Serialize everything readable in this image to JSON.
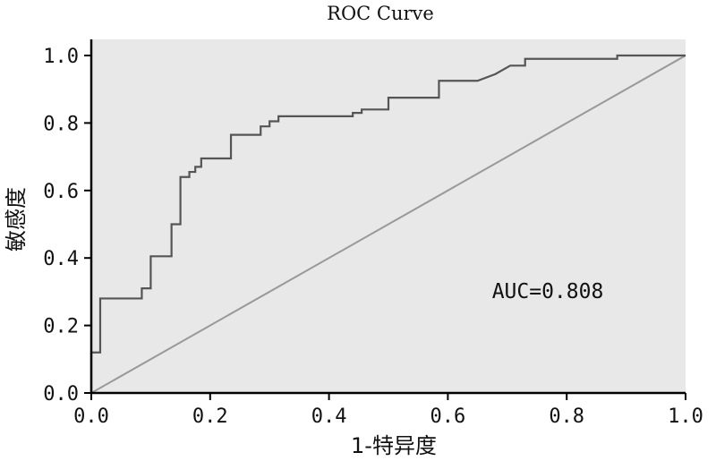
{
  "chart_data": {
    "type": "line",
    "title": "ROC Curve",
    "xlabel": "1-特异度",
    "ylabel": "敏感度",
    "xlim": [
      0,
      1
    ],
    "ylim": [
      0,
      1
    ],
    "x_ticks": [
      "0.0",
      "0.2",
      "0.4",
      "0.6",
      "0.8",
      "1.0"
    ],
    "y_ticks": [
      "0.0",
      "0.2",
      "0.4",
      "0.6",
      "0.8",
      "1.0"
    ],
    "annotation": "AUC=0.808",
    "grid": false,
    "colors": {
      "plot_bg": "#e8e8e8",
      "roc_line": "#555555",
      "diagonal": "#999999",
      "axis": "#000000"
    },
    "series": [
      {
        "points": [
          [
            0,
            0
          ],
          [
            0,
            0.12
          ],
          [
            0.015,
            0.12
          ],
          [
            0.015,
            0.28
          ],
          [
            0.085,
            0.28
          ],
          [
            0.085,
            0.31
          ],
          [
            0.1,
            0.31
          ],
          [
            0.1,
            0.405
          ],
          [
            0.135,
            0.405
          ],
          [
            0.135,
            0.5
          ],
          [
            0.15,
            0.5
          ],
          [
            0.15,
            0.64
          ],
          [
            0.165,
            0.64
          ],
          [
            0.165,
            0.655
          ],
          [
            0.175,
            0.655
          ],
          [
            0.175,
            0.67
          ],
          [
            0.185,
            0.67
          ],
          [
            0.185,
            0.695
          ],
          [
            0.235,
            0.695
          ],
          [
            0.235,
            0.765
          ],
          [
            0.285,
            0.765
          ],
          [
            0.285,
            0.79
          ],
          [
            0.3,
            0.79
          ],
          [
            0.3,
            0.805
          ],
          [
            0.315,
            0.805
          ],
          [
            0.315,
            0.82
          ],
          [
            0.44,
            0.82
          ],
          [
            0.44,
            0.83
          ],
          [
            0.455,
            0.83
          ],
          [
            0.455,
            0.84
          ],
          [
            0.5,
            0.84
          ],
          [
            0.5,
            0.875
          ],
          [
            0.585,
            0.875
          ],
          [
            0.585,
            0.925
          ],
          [
            0.65,
            0.925
          ],
          [
            0.68,
            0.945
          ],
          [
            0.705,
            0.97
          ],
          [
            0.73,
            0.97
          ],
          [
            0.73,
            0.99
          ],
          [
            0.885,
            0.99
          ],
          [
            0.885,
            1.0
          ],
          [
            1.0,
            1.0
          ]
        ]
      },
      {
        "points": [
          [
            0,
            0
          ],
          [
            1,
            1
          ]
        ]
      }
    ]
  }
}
